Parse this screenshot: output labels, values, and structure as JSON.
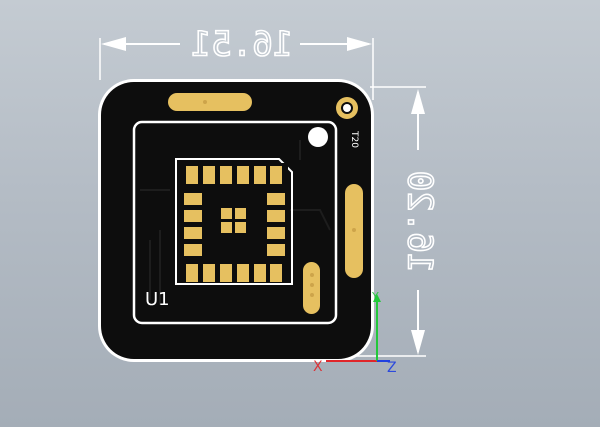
{
  "viewport": {
    "background_top": "#c4cbd2",
    "background_bottom": "#a4adb7"
  },
  "dimensions": {
    "width_label": "16.51",
    "height_label": "16.20"
  },
  "silkscreen": {
    "reference": "U1",
    "component_label": "T20"
  },
  "colors": {
    "board": "#0d0d0d",
    "pad": "#e6c060",
    "silkscreen": "#ffffff",
    "dimension_line": "#ffffff",
    "axis_x": "#e0262a",
    "axis_y": "#22c83a",
    "axis_z": "#2040e0"
  },
  "axis_triad": {
    "x_label": "X",
    "y_label": "Y",
    "z_label": "Z"
  }
}
